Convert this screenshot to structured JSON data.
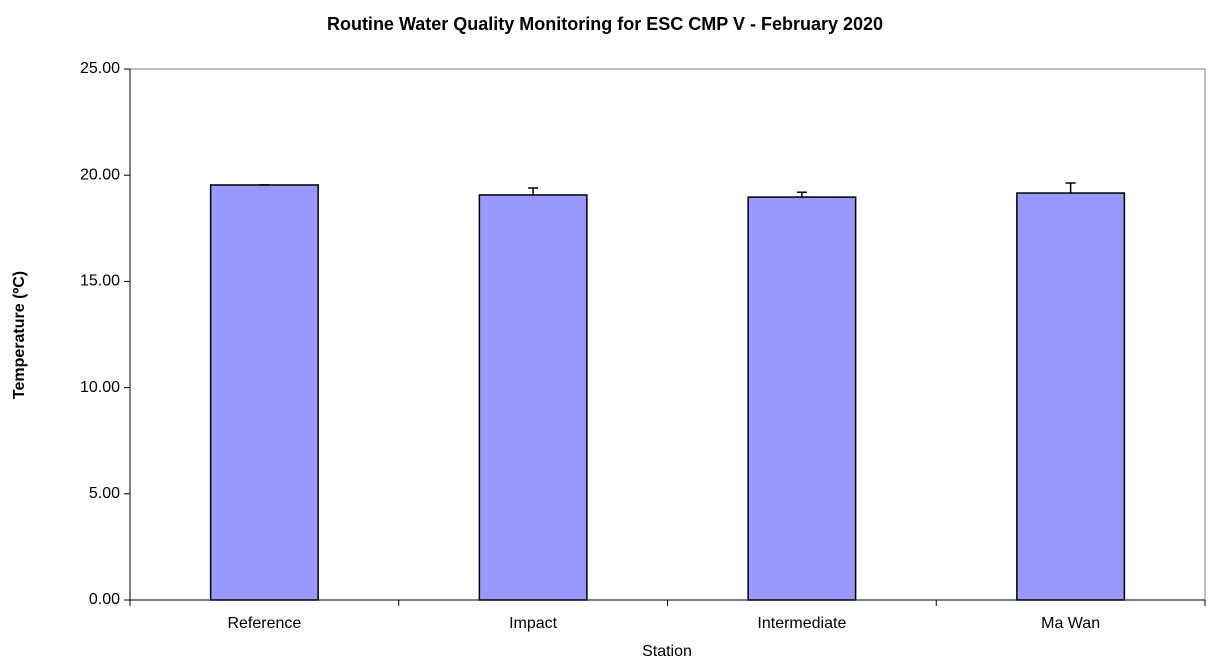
{
  "chart_data": {
    "type": "bar",
    "title": "Routine Water Quality Monitoring for ESC CMP V -  February 2020",
    "x_label": "Station",
    "y_label": "Temperature (ºC)",
    "categories": [
      "Reference",
      "Impact",
      "Intermediate",
      "Ma Wan"
    ],
    "values": [
      19.54,
      19.07,
      18.97,
      19.16
    ],
    "errors": [
      0,
      0.33,
      0.23,
      0.47
    ],
    "color": "#9999ff",
    "ylim": [
      0,
      25
    ],
    "yticks": [
      {
        "value": 0,
        "label": "0.00"
      },
      {
        "value": 5,
        "label": "5.00"
      },
      {
        "value": 10,
        "label": "10.00"
      },
      {
        "value": 15,
        "label": "15.00"
      },
      {
        "value": 20,
        "label": "20.00"
      },
      {
        "value": 25,
        "label": "25.00"
      }
    ],
    "grid": false
  }
}
